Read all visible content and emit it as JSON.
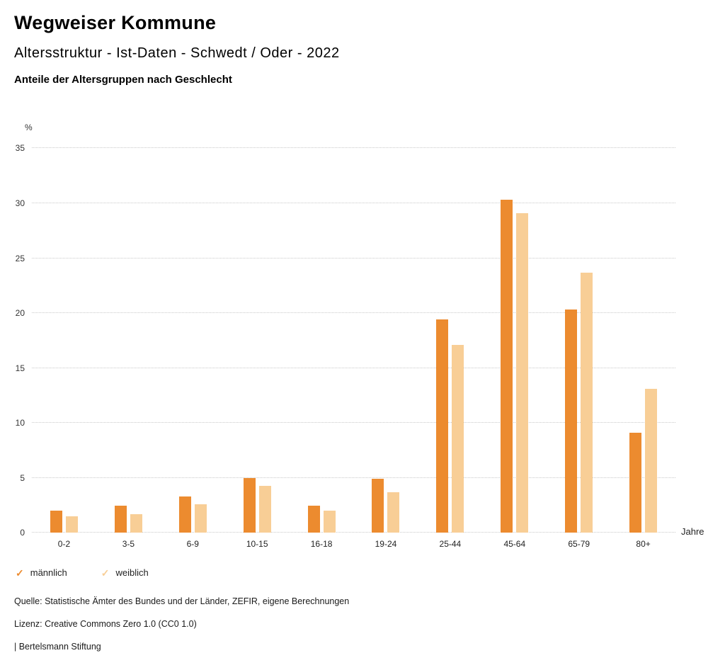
{
  "header": {
    "title": "Wegweiser Kommune",
    "subtitle": "Altersstruktur - Ist-Daten - Schwedt / Oder - 2022",
    "subsubtitle": "Anteile der Altersgruppen nach Geschlecht"
  },
  "chart_data": {
    "type": "bar",
    "categories": [
      "0-2",
      "3-5",
      "6-9",
      "10-15",
      "16-18",
      "19-24",
      "25-44",
      "45-64",
      "65-79",
      "80+"
    ],
    "series": [
      {
        "name": "männlich",
        "color": "#EC8B2F",
        "values": [
          2.0,
          2.5,
          3.3,
          5.0,
          2.5,
          4.9,
          19.4,
          30.3,
          20.3,
          9.1
        ]
      },
      {
        "name": "weiblich",
        "color": "#F8CE96",
        "values": [
          1.5,
          1.7,
          2.6,
          4.3,
          2.0,
          3.7,
          17.1,
          29.1,
          23.7,
          13.1
        ]
      }
    ],
    "title": "Anteile der Altersgruppen nach Geschlecht",
    "xlabel": "Jahre",
    "ylabel": "%",
    "ylim": [
      0,
      35
    ],
    "ytick_step": 5,
    "grid": true,
    "legend_position": "bottom",
    "legend_mark": "✓"
  },
  "footer": {
    "source": "Quelle: Statistische Ämter des Bundes und der Länder, ZEFIR, eigene Berechnungen",
    "license": "Lizenz: Creative Commons Zero 1.0 (CC0 1.0)",
    "attribution": "| Bertelsmann Stiftung"
  }
}
